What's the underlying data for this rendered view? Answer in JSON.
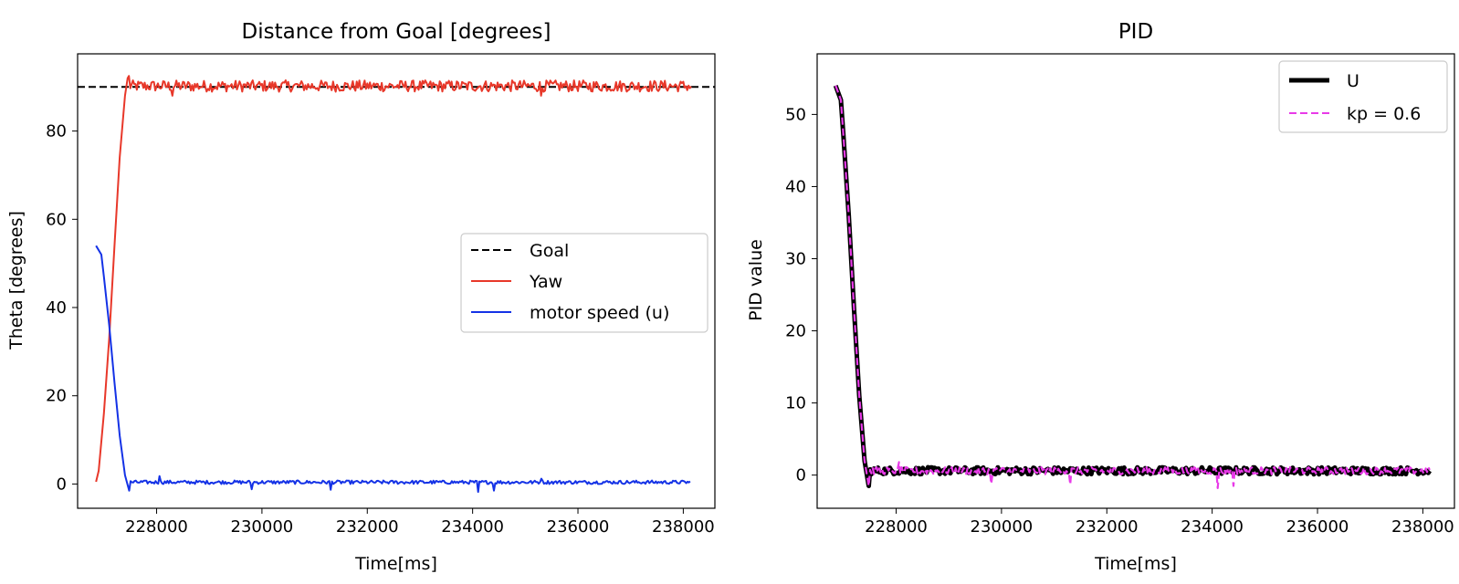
{
  "chart_data": [
    {
      "type": "line",
      "title": "Distance from Goal [degrees]",
      "xlabel": "Time[ms]",
      "ylabel": "Theta [degrees]",
      "xlim": [
        226500,
        238600
      ],
      "ylim": [
        -5.5,
        97.5
      ],
      "xticks": [
        228000,
        230000,
        232000,
        234000,
        236000,
        238000
      ],
      "xtick_labels": [
        "228000",
        "230000",
        "232000",
        "234000",
        "236000",
        "238000"
      ],
      "yticks": [
        0,
        20,
        40,
        60,
        80
      ],
      "ytick_labels": [
        "0",
        "20",
        "40",
        "60",
        "80"
      ],
      "grid": false,
      "legend_position": "center-right",
      "series": [
        {
          "name": "Goal",
          "color": "#000000",
          "style": "dashed",
          "kind": "hline",
          "y": 90
        },
        {
          "name": "Yaw",
          "color": "#e8382a",
          "style": "solid",
          "kind": "step-then-noise",
          "x": [
            226850,
            226900,
            227000,
            227100,
            227200,
            227300,
            227400,
            227450
          ],
          "values": [
            0.5,
            3,
            16,
            33,
            54,
            74,
            88,
            92
          ],
          "steady_x": [
            227450,
            238150
          ],
          "steady_mean": 90.2,
          "steady_noise": 1.3,
          "extrema": [
            {
              "x": 227480,
              "y": 92.5
            },
            {
              "x": 228300,
              "y": 88
            },
            {
              "x": 235300,
              "y": 88
            }
          ]
        },
        {
          "name": "motor speed (u)",
          "color": "#1432e6",
          "style": "solid",
          "kind": "step-then-noise",
          "x": [
            226850,
            226950,
            227000,
            227100,
            227200,
            227300,
            227400,
            227480
          ],
          "values": [
            54,
            52,
            47,
            36,
            23,
            11,
            2,
            -1.5
          ],
          "steady_x": [
            227480,
            238150
          ],
          "steady_mean": 0.4,
          "steady_noise": 0.4,
          "spikes": [
            {
              "x": 228050,
              "y": 1.8
            },
            {
              "x": 229800,
              "y": -1.2
            },
            {
              "x": 231300,
              "y": -1.3
            },
            {
              "x": 234100,
              "y": -1.8
            },
            {
              "x": 234400,
              "y": -1.5
            },
            {
              "x": 235300,
              "y": 1.2
            }
          ]
        }
      ]
    },
    {
      "type": "line",
      "title": "PID",
      "xlabel": "Time[ms]",
      "ylabel": "PID value",
      "xlim": [
        226500,
        238600
      ],
      "ylim": [
        -4.6,
        58.4
      ],
      "xticks": [
        228000,
        230000,
        232000,
        234000,
        236000,
        238000
      ],
      "xtick_labels": [
        "228000",
        "230000",
        "232000",
        "234000",
        "236000",
        "238000"
      ],
      "yticks": [
        0,
        10,
        20,
        30,
        40,
        50
      ],
      "ytick_labels": [
        "0",
        "10",
        "20",
        "30",
        "40",
        "50"
      ],
      "grid": false,
      "legend_position": "upper-right",
      "series": [
        {
          "name": "U",
          "color": "#000000",
          "style": "solid-thick",
          "kind": "step-then-noise",
          "x": [
            226850,
            226950,
            227000,
            227100,
            227200,
            227300,
            227400,
            227480
          ],
          "values": [
            54,
            52,
            47,
            36,
            23,
            11,
            2,
            -1.5
          ],
          "steady_x": [
            227480,
            238150
          ],
          "steady_mean": 0.6,
          "steady_noise": 0.5
        },
        {
          "name": "kp = 0.6",
          "color": "#e83ae8",
          "style": "dashed",
          "kind": "step-then-noise",
          "x": [
            226850,
            226950,
            227000,
            227100,
            227200,
            227300,
            227400,
            227480
          ],
          "values": [
            54,
            52,
            47,
            36,
            23,
            11,
            2,
            -1.5
          ],
          "steady_x": [
            227480,
            238150
          ],
          "steady_mean": 0.6,
          "steady_noise": 0.5,
          "spikes": [
            {
              "x": 228050,
              "y": 1.8
            },
            {
              "x": 229800,
              "y": -1.2
            },
            {
              "x": 231300,
              "y": -1.3
            },
            {
              "x": 234100,
              "y": -1.8
            },
            {
              "x": 234400,
              "y": -1.5
            }
          ]
        }
      ]
    }
  ]
}
